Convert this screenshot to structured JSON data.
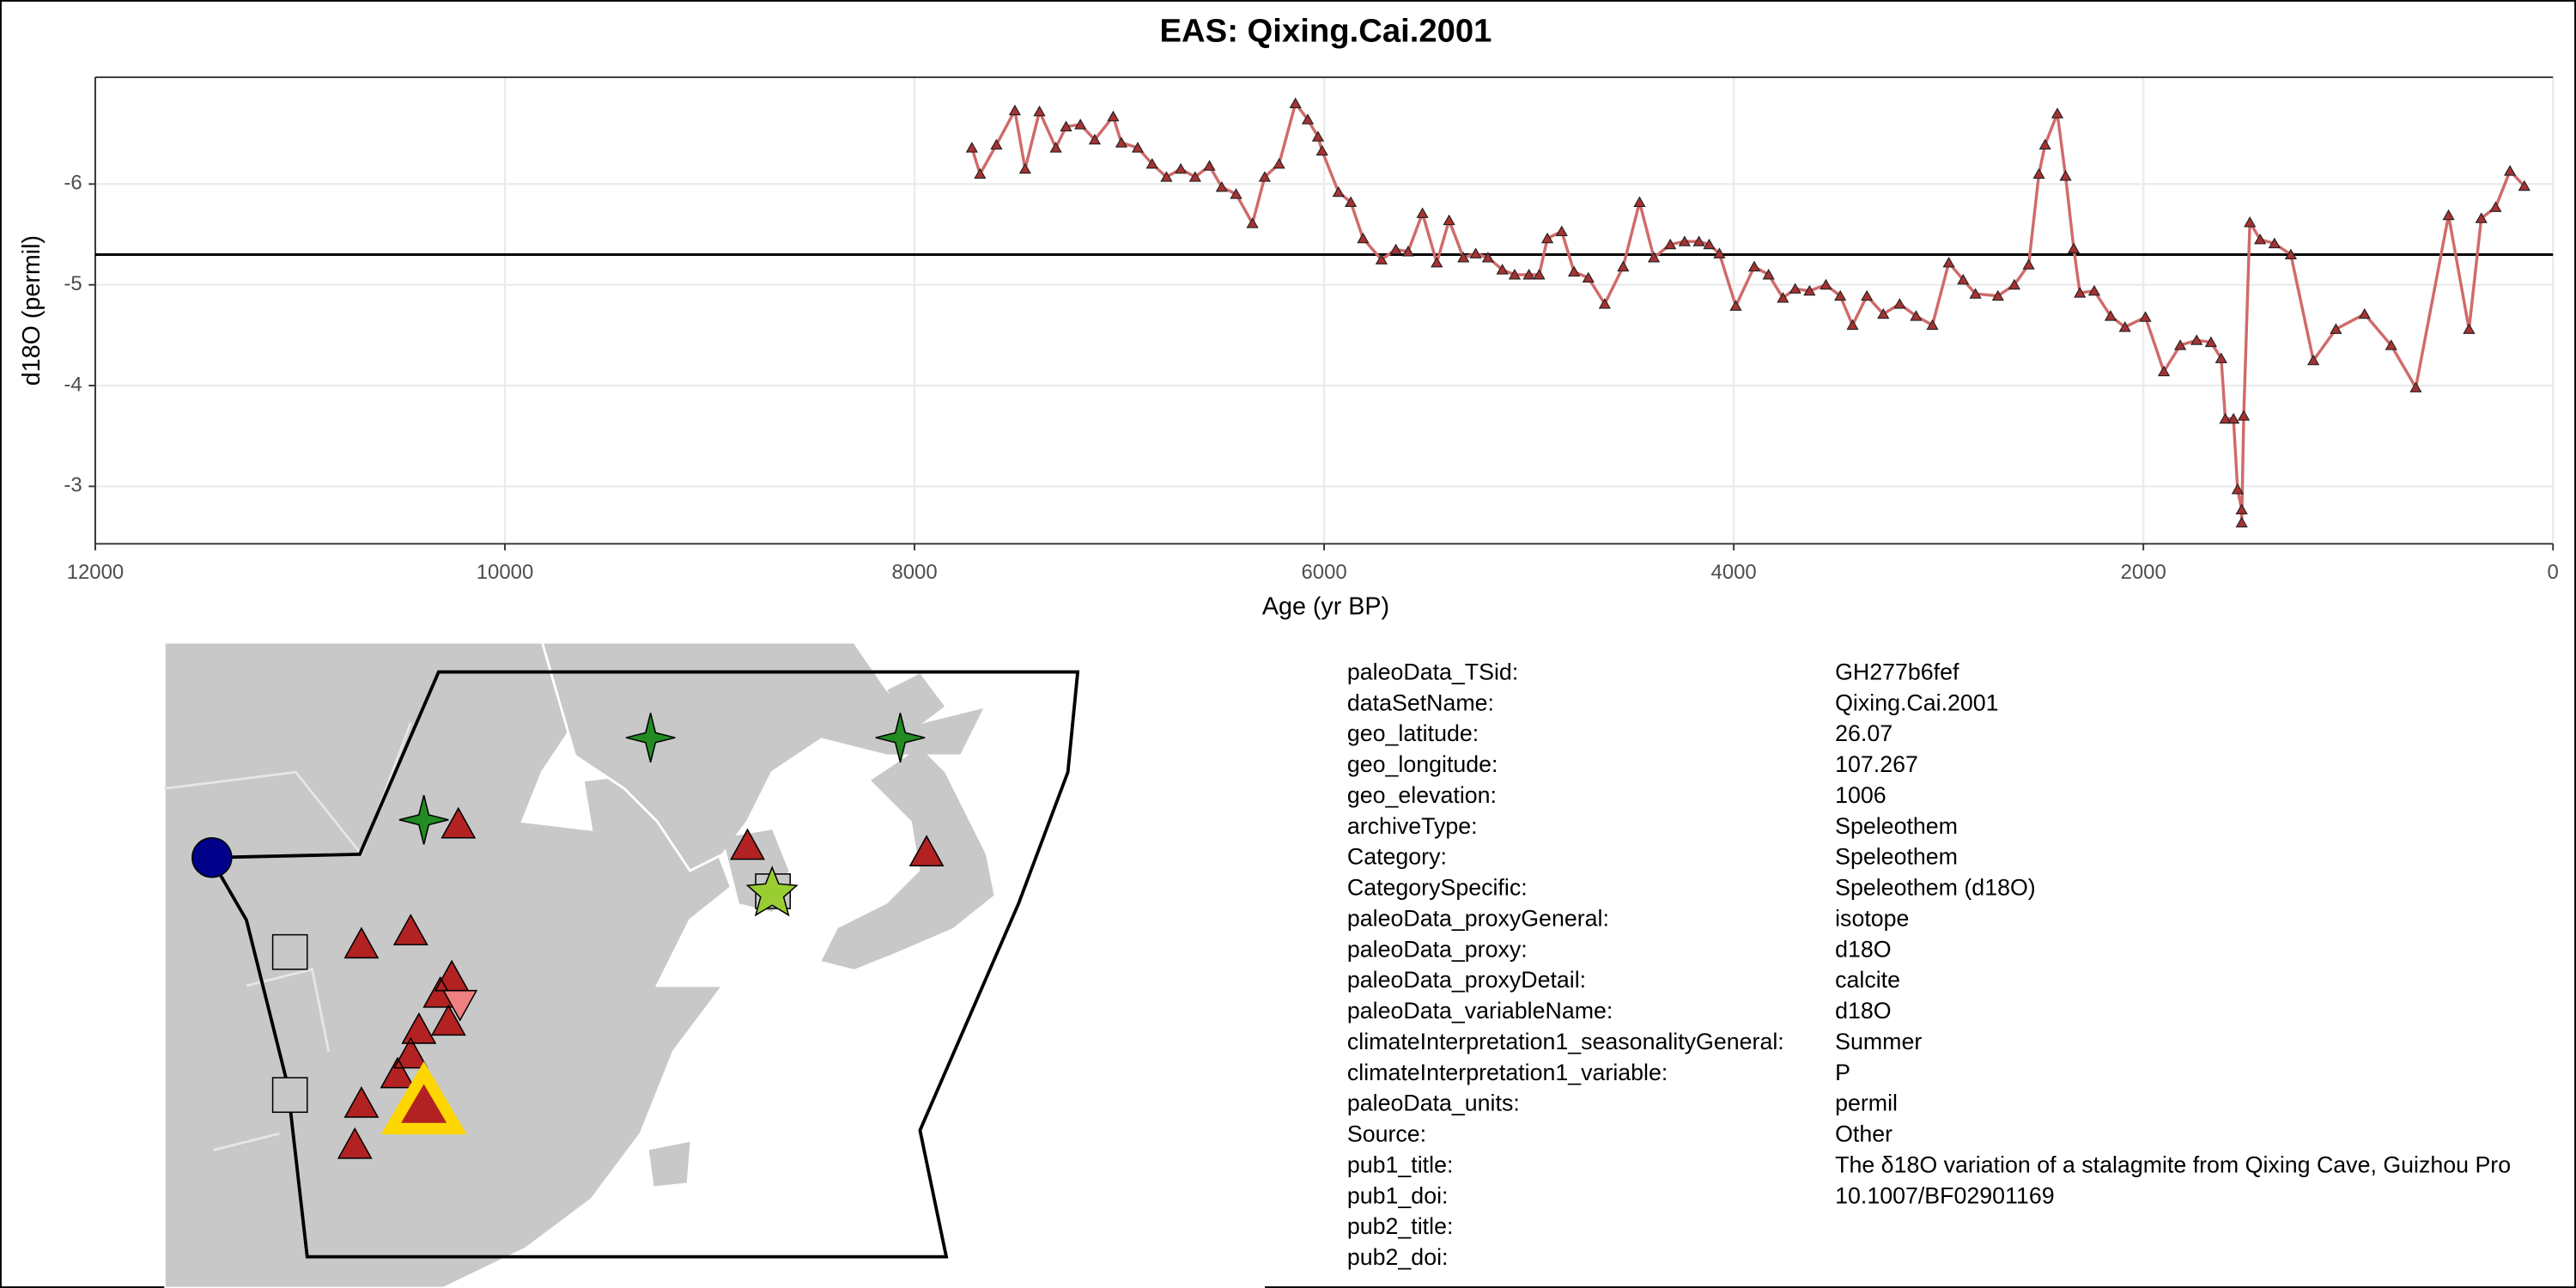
{
  "chart_data": {
    "type": "line",
    "title": "EAS: Qixing.Cai.2001",
    "x_label": "Age (yr BP)",
    "y_label": "d18O (permil)",
    "xlim": [
      12000,
      0
    ],
    "xticks": [
      12000,
      10000,
      8000,
      6000,
      4000,
      2000,
      0
    ],
    "ylim": [
      -2.43,
      -7.06
    ],
    "yticks": [
      -6,
      -5,
      -4,
      -3
    ],
    "grid": true,
    "hline": -5.3,
    "color": "#d06a6a",
    "marker_color": "#a83232",
    "x": [
      7720,
      7680,
      7600,
      7510,
      7460,
      7390,
      7310,
      7260,
      7190,
      7120,
      7030,
      6990,
      6910,
      6840,
      6770,
      6700,
      6630,
      6560,
      6500,
      6430,
      6350,
      6290,
      6220,
      6140,
      6080,
      6030,
      6010,
      5930,
      5870,
      5810,
      5720,
      5650,
      5590,
      5520,
      5450,
      5390,
      5320,
      5260,
      5200,
      5130,
      5070,
      5000,
      4950,
      4910,
      4840,
      4780,
      4710,
      4630,
      4540,
      4460,
      4390,
      4310,
      4240,
      4170,
      4120,
      4070,
      3990,
      3900,
      3830,
      3760,
      3700,
      3630,
      3550,
      3480,
      3420,
      3350,
      3270,
      3190,
      3110,
      3030,
      2950,
      2880,
      2820,
      2710,
      2630,
      2560,
      2510,
      2480,
      2420,
      2380,
      2340,
      2310,
      2240,
      2160,
      2090,
      1990,
      1900,
      1820,
      1740,
      1670,
      1620,
      1600,
      1560,
      1540,
      1520,
      1520,
      1510,
      1480,
      1430,
      1360,
      1280,
      1170,
      1060,
      920,
      790,
      670,
      510,
      410,
      350,
      280,
      210,
      140
    ],
    "values": [
      -6.36,
      -6.1,
      -6.39,
      -6.73,
      -6.15,
      -6.72,
      -6.36,
      -6.57,
      -6.59,
      -6.44,
      -6.67,
      -6.41,
      -6.36,
      -6.2,
      -6.07,
      -6.15,
      -6.07,
      -6.18,
      -5.97,
      -5.9,
      -5.61,
      -6.07,
      -6.2,
      -6.8,
      -6.64,
      -6.47,
      -6.33,
      -5.92,
      -5.82,
      -5.46,
      -5.25,
      -5.35,
      -5.33,
      -5.71,
      -5.22,
      -5.64,
      -5.27,
      -5.31,
      -5.27,
      -5.15,
      -5.1,
      -5.1,
      -5.1,
      -5.46,
      -5.53,
      -5.13,
      -5.07,
      -4.81,
      -5.18,
      -5.82,
      -5.27,
      -5.4,
      -5.43,
      -5.43,
      -5.4,
      -5.31,
      -4.79,
      -5.18,
      -5.1,
      -4.87,
      -4.96,
      -4.94,
      -5.0,
      -4.89,
      -4.6,
      -4.89,
      -4.71,
      -4.81,
      -4.69,
      -4.6,
      -5.22,
      -5.05,
      -4.91,
      -4.89,
      -5.0,
      -5.2,
      -6.1,
      -6.39,
      -6.7,
      -6.08,
      -5.36,
      -4.92,
      -4.94,
      -4.69,
      -4.58,
      -4.68,
      -4.14,
      -4.4,
      -4.45,
      -4.43,
      -4.27,
      -3.67,
      -3.67,
      -2.97,
      -2.77,
      -2.64,
      -3.7,
      -5.62,
      -5.45,
      -5.41,
      -5.3,
      -4.25,
      -4.56,
      -4.71,
      -4.4,
      -3.98,
      -5.69,
      -4.56,
      -5.66,
      -5.77,
      -6.13,
      -5.98
    ]
  },
  "metadata": {
    "rows": [
      [
        "paleoData_TSid:",
        "GH277b6fef"
      ],
      [
        "dataSetName:",
        "Qixing.Cai.2001"
      ],
      [
        "geo_latitude:",
        "26.07"
      ],
      [
        "geo_longitude:",
        "107.267"
      ],
      [
        "geo_elevation:",
        "1006"
      ],
      [
        "archiveType:",
        "Speleothem"
      ],
      [
        "Category:",
        "Speleothem"
      ],
      [
        "CategorySpecific:",
        "Speleothem (d18O)"
      ],
      [
        "paleoData_proxyGeneral:",
        "isotope"
      ],
      [
        "paleoData_proxy:",
        "d18O"
      ],
      [
        "paleoData_proxyDetail:",
        "calcite"
      ],
      [
        "paleoData_variableName:",
        "d18O"
      ],
      [
        "climateInterpretation1_seasonalityGeneral:",
        "Summer"
      ],
      [
        "climateInterpretation1_variable:",
        "P"
      ],
      [
        "paleoData_units:",
        "permil"
      ],
      [
        "Source:",
        "Other"
      ],
      [
        "pub1_title:",
        "The δ18O variation of a stalagmite from Qixing Cave, Guizhou Pro"
      ],
      [
        "pub1_doi:",
        "10.1007/BF02901169"
      ],
      [
        "pub2_title:"
      ],
      [
        "pub2_doi:"
      ]
    ]
  }
}
